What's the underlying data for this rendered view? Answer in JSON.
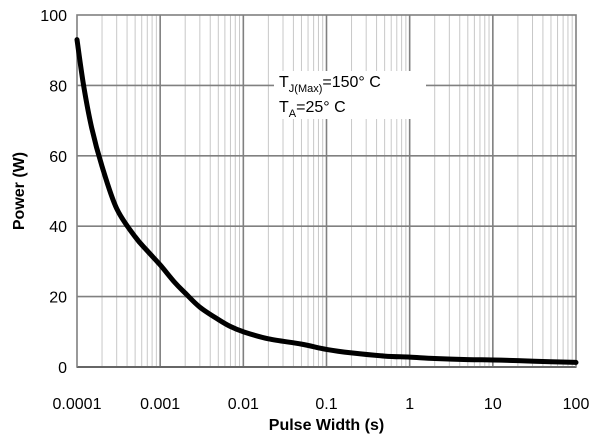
{
  "chart_data": {
    "type": "line",
    "title": "",
    "xlabel": "Pulse Width (s)",
    "ylabel": "Power (W)",
    "xscale": "log",
    "xlim": [
      0.0001,
      100
    ],
    "ylim": [
      0,
      100
    ],
    "grid": true,
    "x_tick_labels": [
      "0.0001",
      "0.001",
      "0.01",
      "0.1",
      "1",
      "10",
      "100"
    ],
    "y_tick_labels": [
      "0",
      "20",
      "40",
      "60",
      "80",
      "100"
    ],
    "series": [
      {
        "color": "#000000",
        "x": [
          0.0001,
          0.00012,
          0.00015,
          0.0002,
          0.0003,
          0.0005,
          0.0007,
          0.001,
          0.0015,
          0.002,
          0.003,
          0.005,
          0.007,
          0.01,
          0.02,
          0.05,
          0.1,
          0.2,
          0.5,
          1,
          2,
          5,
          10,
          20,
          50,
          100
        ],
        "y": [
          93,
          80,
          68,
          57,
          45,
          37,
          33,
          29,
          24,
          21,
          17,
          13.5,
          11.5,
          10,
          8,
          6.5,
          5,
          4,
          3.1,
          2.8,
          2.4,
          2.1,
          2.0,
          1.8,
          1.5,
          1.3
        ]
      }
    ],
    "annotations": [
      {
        "base": "T",
        "sub": "J(Max)",
        "rest": "=150° C"
      },
      {
        "base": "T",
        "sub": "A",
        "rest": "=25° C"
      }
    ]
  }
}
